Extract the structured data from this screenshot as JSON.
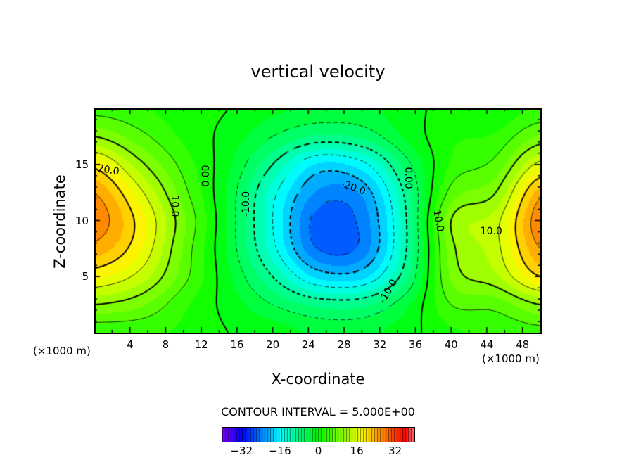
{
  "chart_data": {
    "type": "heatmap",
    "subtype": "filled-contour",
    "title": "vertical velocity",
    "xlabel": "X-coordinate",
    "ylabel": "Z-coordinate",
    "x_unit": "(×1000 m)",
    "y_unit": "(×1000 m)",
    "xlim": [
      0,
      50
    ],
    "ylim": [
      0,
      20
    ],
    "xticks": [
      "4",
      "8",
      "12",
      "16",
      "20",
      "24",
      "28",
      "32",
      "36",
      "40",
      "44",
      "48"
    ],
    "xtick_values": [
      4,
      8,
      12,
      16,
      20,
      24,
      28,
      32,
      36,
      40,
      44,
      48
    ],
    "yticks": [
      "5",
      "10",
      "15"
    ],
    "ytick_values": [
      5,
      10,
      15
    ],
    "contour_interval_text": "CONTOUR INTERVAL = 5.000E+00",
    "contour_interval": 5,
    "grid_x": [
      0,
      5,
      10,
      15,
      20,
      25,
      30,
      35,
      40,
      45,
      50
    ],
    "grid_z": [
      0,
      2.5,
      5,
      7.5,
      10,
      12.5,
      15,
      17.5,
      20
    ],
    "values": [
      [
        3,
        3,
        2,
        0,
        -1,
        -3,
        -3,
        -1,
        2,
        3,
        4
      ],
      [
        10,
        8,
        3,
        -1,
        -5,
        -8,
        -8,
        -3,
        5,
        6,
        10
      ],
      [
        18,
        14,
        6,
        -2,
        -10,
        -18,
        -18,
        -8,
        8,
        12,
        20
      ],
      [
        24,
        18,
        7,
        -3,
        -14,
        -25,
        -24,
        -10,
        9,
        14,
        25
      ],
      [
        27,
        19,
        8,
        -3,
        -15,
        -26,
        -24,
        -10,
        10,
        14,
        27
      ],
      [
        25,
        16,
        6,
        -3,
        -14,
        -23,
        -22,
        -9,
        6,
        10,
        24
      ],
      [
        19,
        11,
        4,
        -2,
        -10,
        -18,
        -16,
        -6,
        3,
        6,
        16
      ],
      [
        10,
        6,
        2,
        -1,
        -5,
        -8,
        -7,
        -2,
        2,
        3,
        8
      ],
      [
        4,
        3,
        1,
        0,
        -2,
        -3,
        -3,
        -1,
        1,
        1,
        3
      ]
    ],
    "contour_labels": [
      {
        "text": "20.0",
        "x": 1.6,
        "z": 14.5
      },
      {
        "text": "10.0",
        "x": 9.0,
        "z": 11.3
      },
      {
        "text": "0.00",
        "x": 12.5,
        "z": 14.0
      },
      {
        "text": "-10.0",
        "x": 17.0,
        "z": 11.5
      },
      {
        "text": "-20.0",
        "x": 29.0,
        "z": 12.9
      },
      {
        "text": "0.00",
        "x": 35.2,
        "z": 13.8
      },
      {
        "text": "10.0",
        "x": 38.6,
        "z": 10.0
      },
      {
        "text": "-10.0",
        "x": 33.0,
        "z": 3.7
      },
      {
        "text": "10.0",
        "x": 44.5,
        "z": 9.0
      }
    ],
    "colorbar": {
      "range": [
        -40,
        40
      ],
      "ticks": [
        "-32",
        "-16",
        "0",
        "16",
        "32"
      ],
      "tick_values": [
        -32,
        -16,
        0,
        16,
        32
      ]
    }
  }
}
